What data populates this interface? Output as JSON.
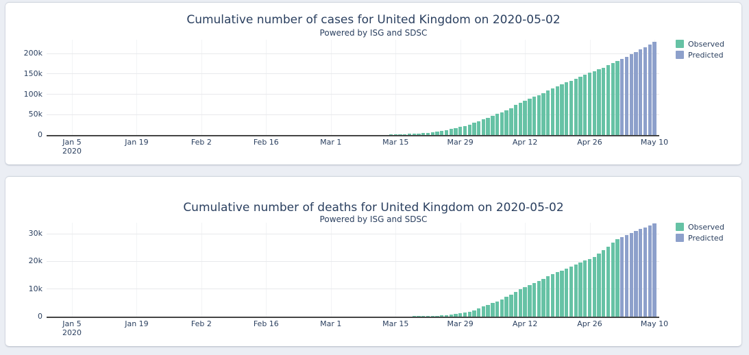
{
  "page": {
    "background_color": "#ebeef4",
    "card_color": "#ffffff",
    "text_color": "#2a3f5f"
  },
  "chart_data": [
    {
      "type": "bar",
      "title": "Cumulative number of cases for United Kingdom on 2020-05-02",
      "subtitle": "Powered by ISG and SDSC",
      "grid": true,
      "legend_position": "top-right",
      "axis_color": "#444444",
      "grid_color": "#e8e9ec",
      "frequency": "daily",
      "x_axis_range": [
        "2019-12-30",
        "2020-05-11"
      ],
      "y_axis_range": [
        0,
        234000
      ],
      "y_ticks": [
        {
          "label": "0",
          "value": 0
        },
        {
          "label": "50k",
          "value": 50000
        },
        {
          "label": "100k",
          "value": 100000
        },
        {
          "label": "150k",
          "value": 150000
        },
        {
          "label": "200k",
          "value": 200000
        }
      ],
      "x_ticks": [
        {
          "label": "Jan 5",
          "sublabel": "2020",
          "day_offset": 0
        },
        {
          "label": "Jan 19",
          "day_offset": 14
        },
        {
          "label": "Feb 2",
          "day_offset": 28
        },
        {
          "label": "Feb 16",
          "day_offset": 42
        },
        {
          "label": "Mar 1",
          "day_offset": 56
        },
        {
          "label": "Mar 15",
          "day_offset": 70
        },
        {
          "label": "Mar 29",
          "day_offset": 84
        },
        {
          "label": "Apr 12",
          "day_offset": 98
        },
        {
          "label": "Apr 26",
          "day_offset": 112
        },
        {
          "label": "May 10",
          "day_offset": 126
        }
      ],
      "series": [
        {
          "name": "Observed",
          "color": "#66c2a5",
          "start_date": "2020-01-31",
          "end_date": "2020-05-02",
          "start_day_offset": 26,
          "values": [
            2,
            2,
            2,
            2,
            2,
            2,
            3,
            3,
            3,
            4,
            8,
            8,
            9,
            9,
            9,
            9,
            9,
            9,
            9,
            9,
            9,
            9,
            9,
            9,
            13,
            13,
            13,
            15,
            20,
            23,
            36,
            40,
            51,
            86,
            116,
            164,
            206,
            273,
            321,
            383,
            456,
            590,
            798,
            1140,
            1391,
            1543,
            1950,
            2626,
            3269,
            3983,
            5018,
            5683,
            6650,
            8077,
            9529,
            11658,
            14543,
            17089,
            19522,
            22141,
            25150,
            29474,
            33718,
            38168,
            41903,
            47806,
            51608,
            55242,
            60733,
            65077,
            73758,
            78991,
            84279,
            88621,
            93873,
            98476,
            103093,
            108692,
            114217,
            120067,
            124743,
            129044,
            133495,
            138078,
            143464,
            148377,
            152840,
            157149,
            161145,
            165221,
            171253,
            177454,
            182260
          ]
        },
        {
          "name": "Predicted",
          "color": "#8da0cb",
          "start_date": "2020-05-03",
          "end_date": "2020-05-10",
          "start_day_offset": 119,
          "values": [
            186300,
            192100,
            198000,
            204000,
            210100,
            216300,
            222600,
            229000
          ]
        }
      ]
    },
    {
      "type": "bar",
      "title": "Cumulative number of deaths for United Kingdom on 2020-05-02",
      "subtitle": "Powered by ISG and SDSC",
      "grid": true,
      "legend_position": "top-right",
      "axis_color": "#444444",
      "grid_color": "#e8e9ec",
      "frequency": "daily",
      "x_axis_range": [
        "2019-12-30",
        "2020-05-11"
      ],
      "y_axis_range": [
        0,
        34000
      ],
      "y_ticks": [
        {
          "label": "0",
          "value": 0
        },
        {
          "label": "10k",
          "value": 10000
        },
        {
          "label": "20k",
          "value": 20000
        },
        {
          "label": "30k",
          "value": 30000
        }
      ],
      "x_ticks": [
        {
          "label": "Jan 5",
          "sublabel": "2020",
          "day_offset": 0
        },
        {
          "label": "Jan 19",
          "day_offset": 14
        },
        {
          "label": "Feb 2",
          "day_offset": 28
        },
        {
          "label": "Feb 16",
          "day_offset": 42
        },
        {
          "label": "Mar 1",
          "day_offset": 56
        },
        {
          "label": "Mar 15",
          "day_offset": 70
        },
        {
          "label": "Mar 29",
          "day_offset": 84
        },
        {
          "label": "Apr 12",
          "day_offset": 98
        },
        {
          "label": "Apr 26",
          "day_offset": 112
        },
        {
          "label": "May 10",
          "day_offset": 126
        }
      ],
      "series": [
        {
          "name": "Observed",
          "color": "#66c2a5",
          "start_date": "2020-03-05",
          "end_date": "2020-05-02",
          "start_day_offset": 60,
          "values": [
            1,
            1,
            2,
            2,
            3,
            6,
            6,
            8,
            10,
            21,
            35,
            35,
            55,
            71,
            137,
            144,
            177,
            233,
            281,
            335,
            422,
            463,
            759,
            1019,
            1228,
            1408,
            1789,
            2352,
            2921,
            3605,
            4313,
            4934,
            5373,
            6159,
            7097,
            7978,
            8958,
            9875,
            10612,
            11329,
            12107,
            12868,
            13729,
            14576,
            15464,
            16060,
            16509,
            17337,
            18100,
            18738,
            19506,
            20319,
            20732,
            21678,
            22792,
            24055,
            25302,
            26842,
            28131
          ]
        },
        {
          "name": "Predicted",
          "color": "#8da0cb",
          "start_date": "2020-05-03",
          "end_date": "2020-05-10",
          "start_day_offset": 119,
          "values": [
            28850,
            29560,
            30260,
            30950,
            31630,
            32300,
            32960,
            33610
          ]
        }
      ]
    }
  ]
}
